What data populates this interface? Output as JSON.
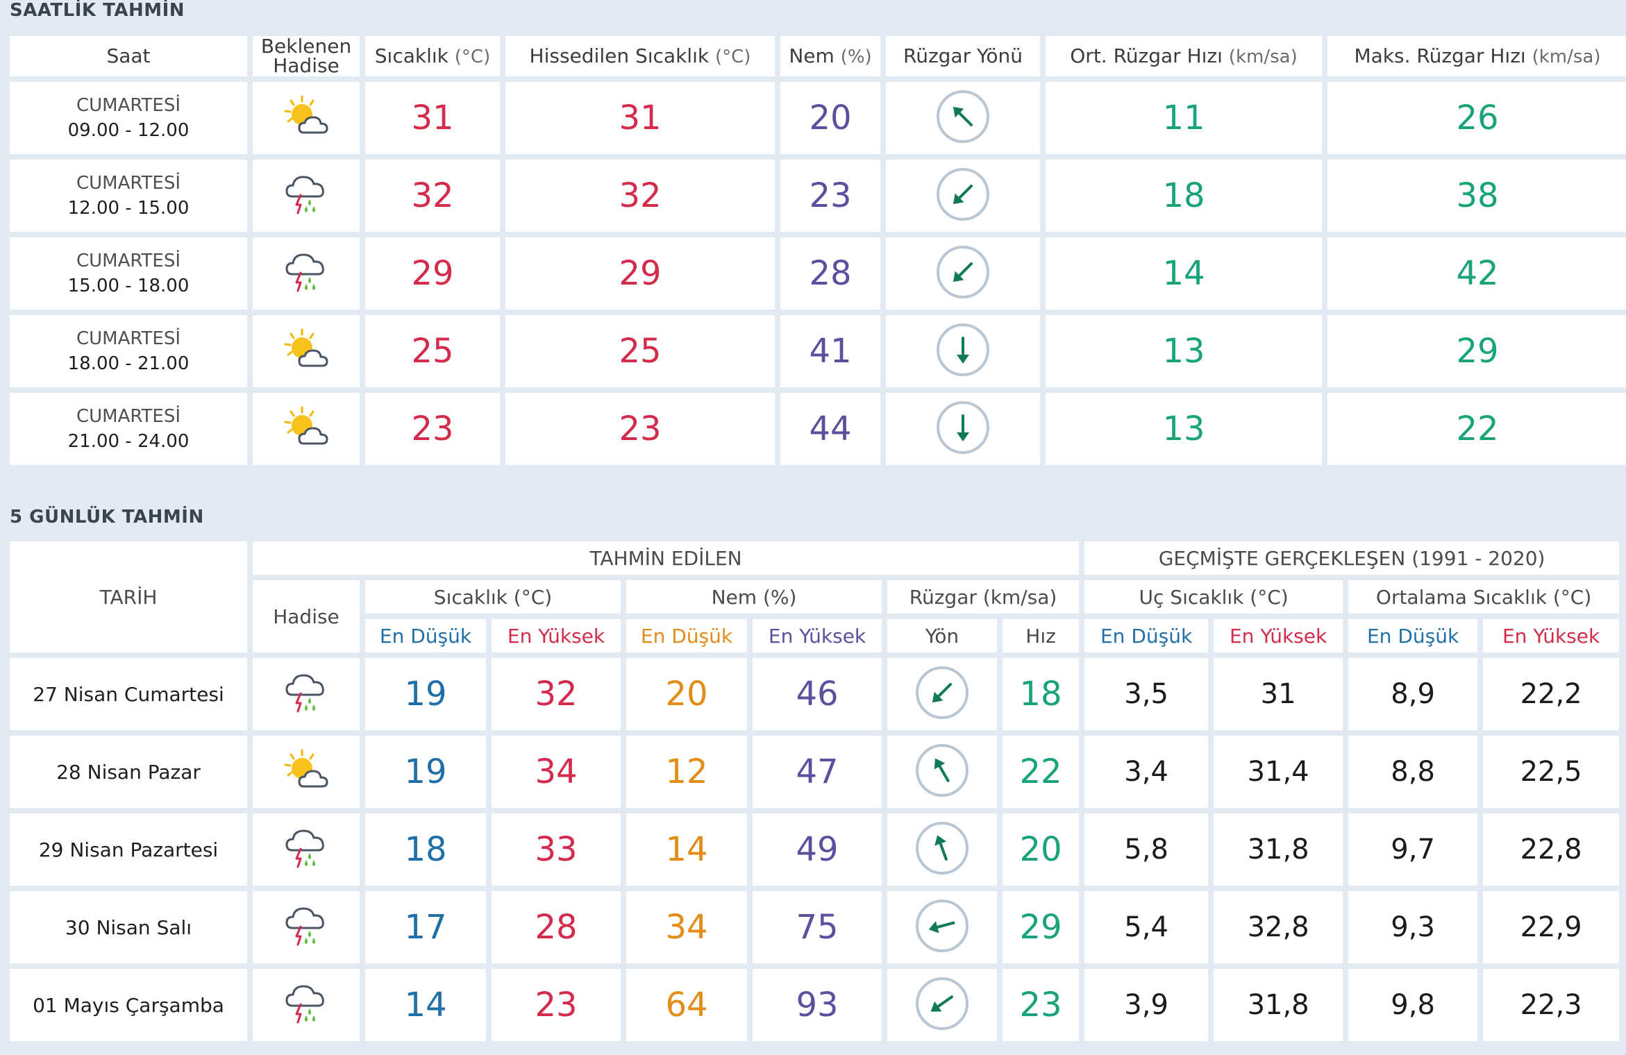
{
  "hourly": {
    "title": "SAATLİK TAHMİN",
    "headers": {
      "saat": "Saat",
      "hadise_1": "Beklenen",
      "hadise_2": "Hadise",
      "sicaklik": "Sıcaklık",
      "sicaklik_unit": "(°C)",
      "hissedilen": "Hissedilen Sıcaklık",
      "hissedilen_unit": "(°C)",
      "nem": "Nem",
      "nem_unit": "(%)",
      "ruzgar_yonu": "Rüzgar Yönü",
      "ort_ruzgar": "Ort. Rüzgar Hızı",
      "ort_ruzgar_unit": "(km/sa)",
      "maks_ruzgar": "Maks. Rüzgar Hızı",
      "maks_ruzgar_unit": "(km/sa)"
    },
    "rows": [
      {
        "day": "CUMARTESİ",
        "time": "09.00 - 12.00",
        "icon": "partly-cloudy-icon",
        "temp": "31",
        "feels": "31",
        "humidity": "20",
        "wind_dir_deg": 315,
        "wind_avg": "11",
        "wind_max": "26"
      },
      {
        "day": "CUMARTESİ",
        "time": "12.00 - 15.00",
        "icon": "thunderstorm-rain-icon",
        "temp": "32",
        "feels": "32",
        "humidity": "23",
        "wind_dir_deg": 225,
        "wind_avg": "18",
        "wind_max": "38"
      },
      {
        "day": "CUMARTESİ",
        "time": "15.00 - 18.00",
        "icon": "thunderstorm-rain-icon",
        "temp": "29",
        "feels": "29",
        "humidity": "28",
        "wind_dir_deg": 225,
        "wind_avg": "14",
        "wind_max": "42"
      },
      {
        "day": "CUMARTESİ",
        "time": "18.00 - 21.00",
        "icon": "partly-cloudy-icon",
        "temp": "25",
        "feels": "25",
        "humidity": "41",
        "wind_dir_deg": 180,
        "wind_avg": "13",
        "wind_max": "29"
      },
      {
        "day": "CUMARTESİ",
        "time": "21.00 - 24.00",
        "icon": "partly-cloudy-icon",
        "temp": "23",
        "feels": "23",
        "humidity": "44",
        "wind_dir_deg": 180,
        "wind_avg": "13",
        "wind_max": "22"
      }
    ]
  },
  "daily": {
    "title": "5 GÜNLÜK TAHMİN",
    "headers": {
      "tarih": "TARİH",
      "tahmin_edilen": "TAHMİN EDİLEN",
      "gecmiste": "GEÇMİŞTE GERÇEKLEŞEN (1991 - 2020)",
      "hadise": "Hadise",
      "sicaklik": "Sıcaklık (°C)",
      "nem": "Nem (%)",
      "ruzgar": "Rüzgar (km/sa)",
      "uc_sicaklik": "Uç Sıcaklık (°C)",
      "ort_sicaklik": "Ortalama Sıcaklık (°C)",
      "en_dusuk": "En Düşük",
      "en_yuksek": "En Yüksek",
      "yon": "Yön",
      "hiz": "Hız"
    },
    "rows": [
      {
        "date": "27 Nisan Cumartesi",
        "icon": "thunderstorm-rain-icon",
        "tmin": "19",
        "tmax": "32",
        "hmin": "20",
        "hmax": "46",
        "wind_dir_deg": 225,
        "wind_speed": "18",
        "uc_min": "3,5",
        "uc_max": "31",
        "ort_min": "8,9",
        "ort_max": "22,2"
      },
      {
        "date": "28 Nisan Pazar",
        "icon": "partly-cloudy-icon",
        "tmin": "19",
        "tmax": "34",
        "hmin": "12",
        "hmax": "47",
        "wind_dir_deg": 330,
        "wind_speed": "22",
        "uc_min": "3,4",
        "uc_max": "31,4",
        "ort_min": "8,8",
        "ort_max": "22,5"
      },
      {
        "date": "29 Nisan Pazartesi",
        "icon": "thunderstorm-rain-icon",
        "tmin": "18",
        "tmax": "33",
        "hmin": "14",
        "hmax": "49",
        "wind_dir_deg": 340,
        "wind_speed": "20",
        "uc_min": "5,8",
        "uc_max": "31,8",
        "ort_min": "9,7",
        "ort_max": "22,8"
      },
      {
        "date": "30 Nisan Salı",
        "icon": "thunderstorm-rain-icon",
        "tmin": "17",
        "tmax": "28",
        "hmin": "34",
        "hmax": "75",
        "wind_dir_deg": 255,
        "wind_speed": "29",
        "uc_min": "5,4",
        "uc_max": "32,8",
        "ort_min": "9,3",
        "ort_max": "22,9"
      },
      {
        "date": "01 Mayıs Çarşamba",
        "icon": "thunderstorm-rain-icon",
        "tmin": "14",
        "tmax": "23",
        "hmin": "64",
        "hmax": "93",
        "wind_dir_deg": 235,
        "wind_speed": "23",
        "uc_min": "3,9",
        "uc_max": "31,8",
        "ort_min": "9,8",
        "ort_max": "22,3"
      }
    ]
  },
  "colors": {
    "red": "#d42a4b",
    "purple": "#5d4f9e",
    "green": "#18a37a",
    "blue": "#1f6fa8",
    "orange": "#e38c16",
    "background": "#e4eaf1"
  }
}
